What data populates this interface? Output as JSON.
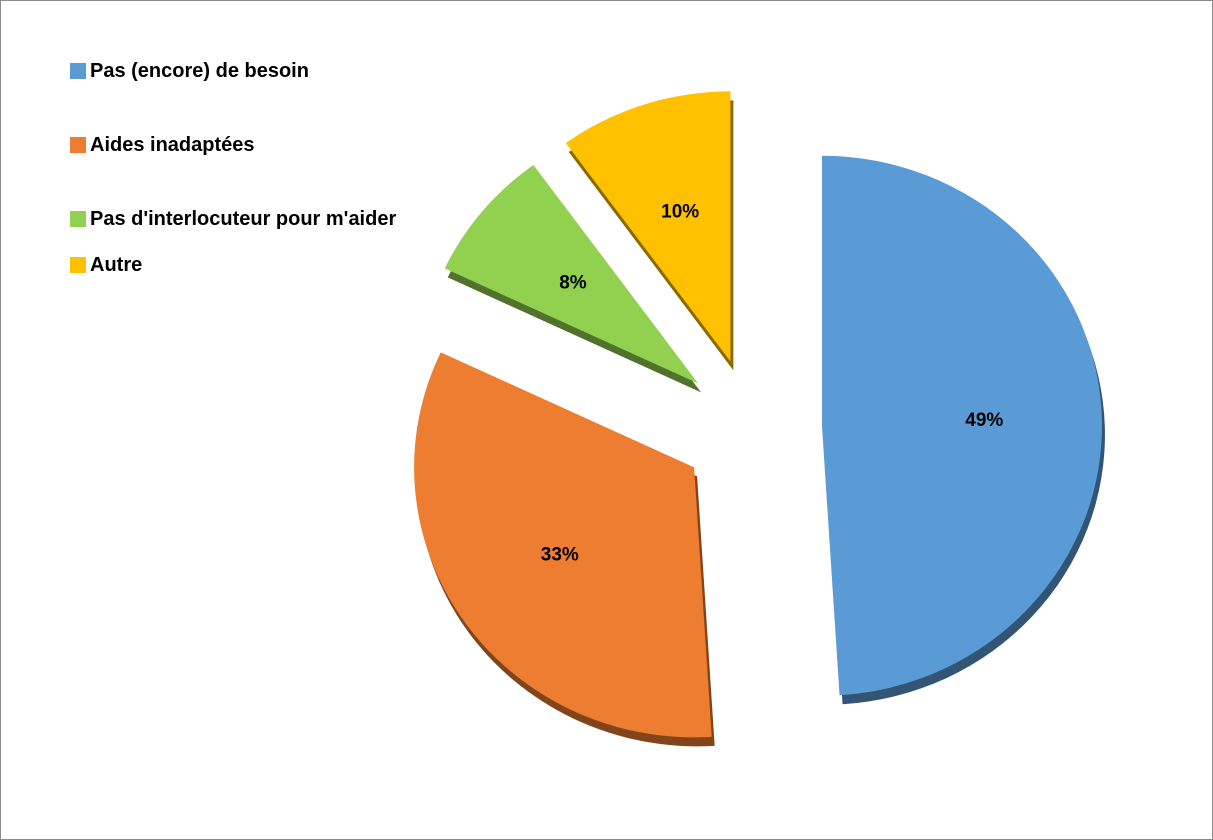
{
  "chart_data": {
    "type": "pie",
    "categories": [
      "Pas (encore) de besoin",
      "Aides inadaptées",
      "Pas d'interlocuteur pour m'aider",
      "Autre"
    ],
    "values": [
      49,
      33,
      8,
      10
    ],
    "value_labels": [
      "49%",
      "33%",
      "8%",
      "10%"
    ],
    "colors": [
      "#5b9bd5",
      "#ed7d31",
      "#92d050",
      "#ffc000"
    ],
    "legend": "top-left"
  }
}
